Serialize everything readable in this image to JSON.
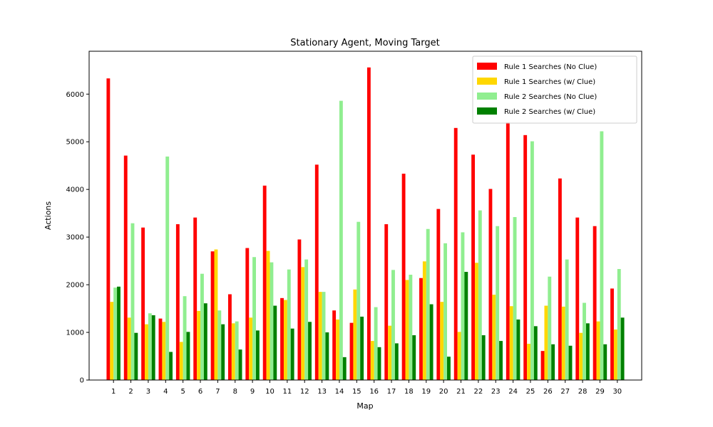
{
  "chart_data": {
    "type": "bar",
    "title": "Stationary Agent, Moving Target",
    "xlabel": "Map",
    "ylabel": "Actions",
    "ylim": [
      0,
      6900
    ],
    "yticks": [
      0,
      1000,
      2000,
      3000,
      4000,
      5000,
      6000
    ],
    "grid": false,
    "legend_position": "top-right",
    "categories": [
      "1",
      "2",
      "3",
      "4",
      "5",
      "6",
      "7",
      "8",
      "9",
      "10",
      "11",
      "12",
      "13",
      "14",
      "15",
      "16",
      "17",
      "18",
      "19",
      "20",
      "21",
      "22",
      "23",
      "24",
      "25",
      "26",
      "27",
      "28",
      "29",
      "30"
    ],
    "series": [
      {
        "name": "Rule 1 Searches (No Clue)",
        "color": "#ff0000",
        "values": [
          6330,
          4710,
          3200,
          1290,
          3270,
          3410,
          2700,
          1800,
          2770,
          4080,
          1720,
          2950,
          4520,
          1460,
          1200,
          6560,
          3270,
          4330,
          2140,
          3590,
          5290,
          4730,
          4010,
          5410,
          5140,
          610,
          4230,
          3410,
          3230,
          1920
        ]
      },
      {
        "name": "Rule 1 Searches (w/ Clue)",
        "color": "#ffd700",
        "values": [
          1640,
          1310,
          1170,
          1220,
          800,
          1450,
          2740,
          1190,
          1310,
          2710,
          1680,
          2370,
          1850,
          1270,
          1900,
          820,
          1140,
          2100,
          2490,
          1640,
          1010,
          2460,
          1790,
          1550,
          760,
          1560,
          1540,
          990,
          1230,
          1060
        ]
      },
      {
        "name": "Rule 2 Searches (No Clue)",
        "color": "#90ee90",
        "values": [
          1940,
          3290,
          1400,
          4690,
          1760,
          2230,
          1460,
          1230,
          2580,
          2470,
          2320,
          2530,
          1850,
          5860,
          3320,
          1530,
          2310,
          2210,
          3170,
          2870,
          3100,
          3560,
          3230,
          3420,
          5010,
          2170,
          2530,
          1620,
          5220,
          2330
        ]
      },
      {
        "name": "Rule 2 Searches (w/ Clue)",
        "color": "#008000",
        "values": [
          1960,
          990,
          1360,
          590,
          1010,
          1610,
          1170,
          640,
          1040,
          1560,
          1080,
          1220,
          1000,
          480,
          1330,
          690,
          770,
          940,
          1590,
          490,
          2270,
          940,
          820,
          1270,
          1130,
          750,
          720,
          1190,
          750,
          1310
        ]
      }
    ]
  }
}
